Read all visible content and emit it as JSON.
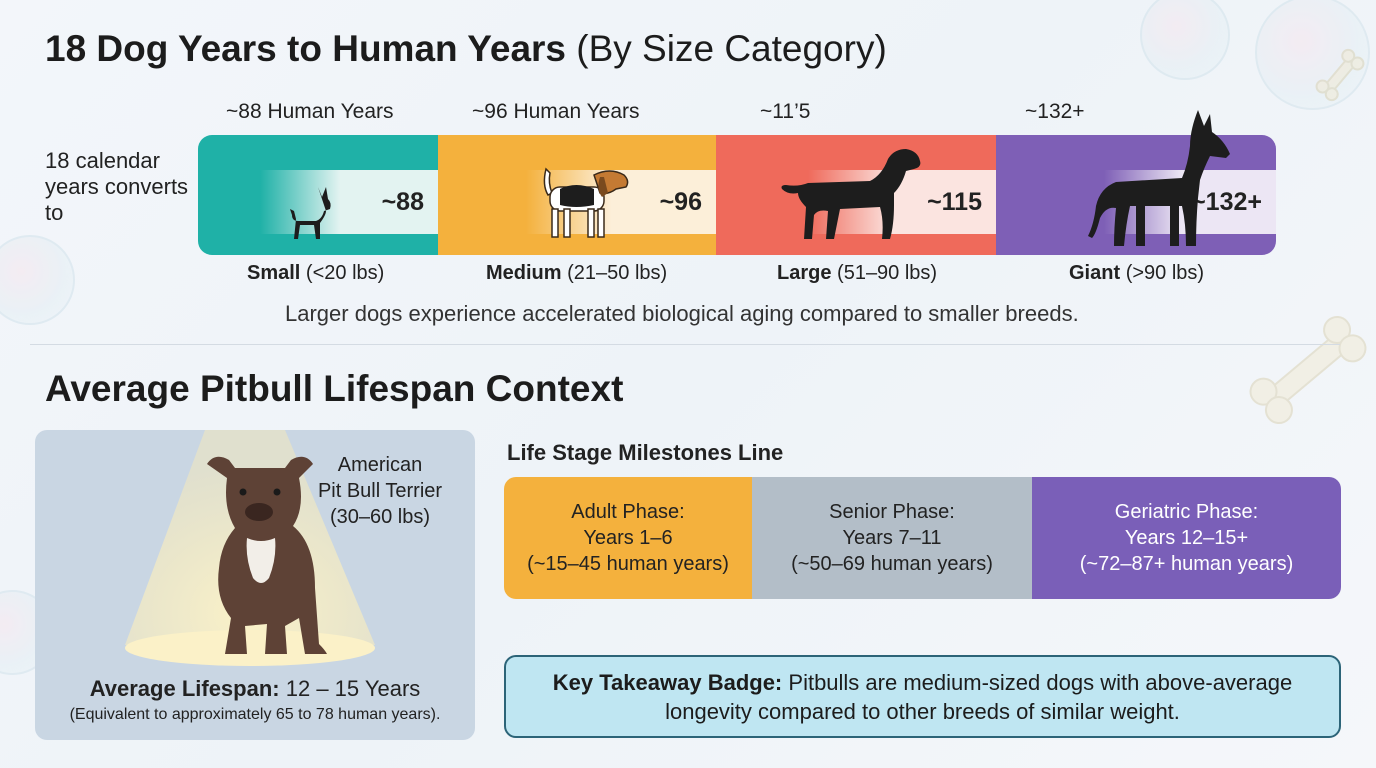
{
  "title": {
    "bold": "18 Dog Years to Human Years",
    "rest": "(By Size Category)"
  },
  "converts_text": "18 calendar years converts to",
  "human_labels": [
    "~88 Human Years",
    "~96 Human Years",
    "~11’5",
    "~132+"
  ],
  "categories": [
    {
      "value": "~88",
      "name": "Small",
      "range": "(<20 lbs)",
      "color": "#1fb1a7",
      "inner": "#e3f3f1",
      "icon": "chihuahua-icon"
    },
    {
      "value": "~96",
      "name": "Medium",
      "range": "(21–50 lbs)",
      "color": "#f4b13d",
      "inner": "#fcefd9",
      "icon": "beagle-icon"
    },
    {
      "value": "~115",
      "name": "Large",
      "range": "(51–90 lbs)",
      "color": "#ef6a5b",
      "inner": "#fbe4e0",
      "icon": "labrador-icon"
    },
    {
      "value": "~132+",
      "name": "Giant",
      "range": "(>90 lbs)",
      "color": "#7e5fb6",
      "inner": "#ece6f4",
      "icon": "great-dane-icon"
    }
  ],
  "note": "Larger dogs experience accelerated biological aging compared to smaller breeds.",
  "section2_title": "Average Pitbull Lifespan Context",
  "pitbull": {
    "breed_line1": "American",
    "breed_line2": "Pit Bull Terrier",
    "weight": "(30–60 lbs)",
    "lifespan_label": "Average Lifespan:",
    "lifespan_value": "12 – 15 Years",
    "equivalent": "(Equivalent to approximately 65 to 78 human years)."
  },
  "milestones_title": "Life Stage Milestones Line",
  "milestones": [
    {
      "name": "Adult Phase:",
      "years": "Years 1–6",
      "human": "(~15–45 human years)",
      "color": "#f4b13d",
      "text": "#222222"
    },
    {
      "name": "Senior Phase:",
      "years": "Years 7–11",
      "human": "(~50–69 human years)",
      "color": "#b3bec8",
      "text": "#222222"
    },
    {
      "name": "Geriatric Phase:",
      "years": "Years 12–15+",
      "human": "(~72–87+ human years)",
      "color": "#7a5fb8",
      "text": "#ffffff"
    }
  ],
  "takeaway": {
    "label": "Key Takeaway Badge:",
    "text": "Pitbulls are medium-sized dogs with above-average longevity  compared to other breeds of similar weight."
  }
}
